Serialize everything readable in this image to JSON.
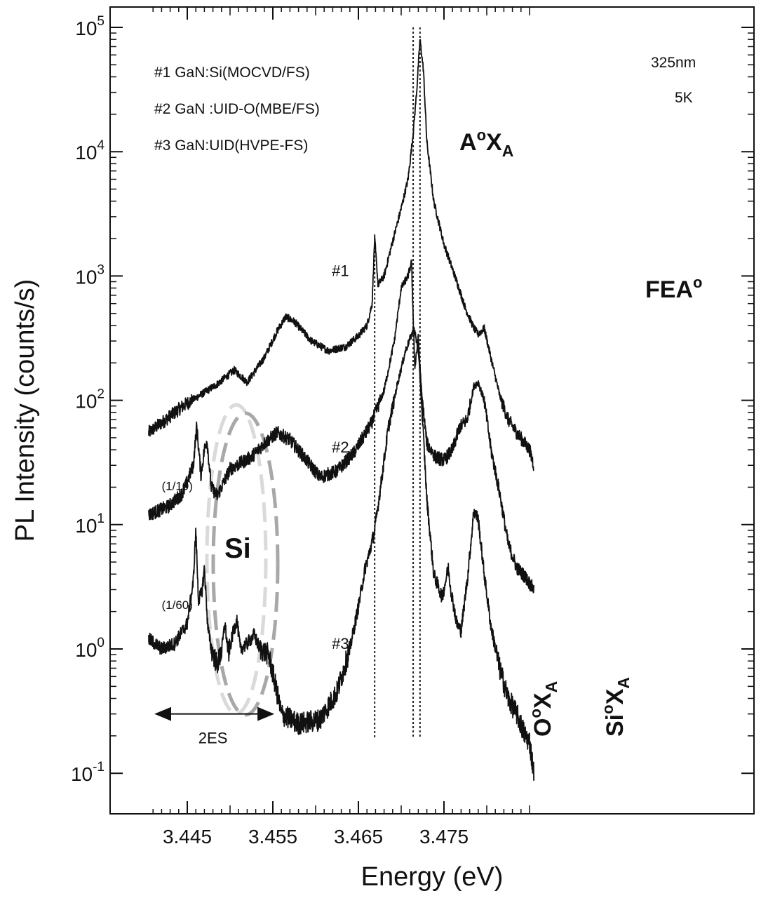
{
  "chart_data": {
    "type": "line",
    "xlabel": "Energy (eV)",
    "ylabel": "PL Intensity (counts/s)",
    "y_scale": "log",
    "xlim": [
      3.4405,
      3.4855
    ],
    "ylim": [
      0.05,
      150000
    ],
    "x_ticks": [
      {
        "value": 3.445,
        "label": "3.445"
      },
      {
        "value": 3.455,
        "label": "3.455"
      },
      {
        "value": 3.465,
        "label": "3.465"
      },
      {
        "value": 3.475,
        "label": "3.475"
      }
    ],
    "y_ticks": [
      {
        "value": 0.1,
        "base": "10",
        "exp": "-1"
      },
      {
        "value": 1,
        "base": "10",
        "exp": "0"
      },
      {
        "value": 10,
        "base": "10",
        "exp": "1"
      },
      {
        "value": 100,
        "base": "10",
        "exp": "2"
      },
      {
        "value": 1000,
        "base": "10",
        "exp": "3"
      },
      {
        "value": 10000,
        "base": "10",
        "exp": "4"
      },
      {
        "value": 100000,
        "base": "10",
        "exp": "5"
      }
    ],
    "legend": [
      "#1 GaN:Si(MOCVD/FS)",
      "#2 GaN :UID-O(MBE/FS)",
      "#3 GaN:UID(HVPE-FS)"
    ],
    "conditions": [
      "325nm",
      "5K"
    ],
    "series": [
      {
        "name": "#1",
        "points": [
          [
            3.4405,
            55
          ],
          [
            3.4425,
            70
          ],
          [
            3.4445,
            90
          ],
          [
            3.4465,
            110
          ],
          [
            3.4485,
            135
          ],
          [
            3.4505,
            175
          ],
          [
            3.452,
            140
          ],
          [
            3.454,
            220
          ],
          [
            3.4555,
            360
          ],
          [
            3.4565,
            470
          ],
          [
            3.4575,
            430
          ],
          [
            3.4595,
            300
          ],
          [
            3.4615,
            250
          ],
          [
            3.4635,
            270
          ],
          [
            3.465,
            330
          ],
          [
            3.466,
            400
          ],
          [
            3.4666,
            600
          ],
          [
            3.4669,
            2000
          ],
          [
            3.4673,
            850
          ],
          [
            3.468,
            1000
          ],
          [
            3.469,
            1900
          ],
          [
            3.47,
            3500
          ],
          [
            3.4708,
            6000
          ],
          [
            3.4714,
            14000
          ],
          [
            3.4718,
            30000
          ],
          [
            3.4722,
            80000
          ],
          [
            3.4726,
            45000
          ],
          [
            3.473,
            12000
          ],
          [
            3.4738,
            4000
          ],
          [
            3.475,
            1800
          ],
          [
            3.4765,
            900
          ],
          [
            3.4775,
            550
          ],
          [
            3.4785,
            380
          ],
          [
            3.479,
            340
          ],
          [
            3.4797,
            380
          ],
          [
            3.4803,
            250
          ],
          [
            3.4815,
            110
          ],
          [
            3.4825,
            70
          ],
          [
            3.4835,
            55
          ],
          [
            3.485,
            40
          ],
          [
            3.4855,
            30
          ]
        ]
      },
      {
        "name": "#2",
        "points": [
          [
            3.4405,
            12
          ],
          [
            3.4428,
            14
          ],
          [
            3.4445,
            18
          ],
          [
            3.4457,
            30
          ],
          [
            3.4461,
            62
          ],
          [
            3.4466,
            25
          ],
          [
            3.447,
            40
          ],
          [
            3.4473,
            48
          ],
          [
            3.4478,
            20
          ],
          [
            3.4485,
            17
          ],
          [
            3.45,
            28
          ],
          [
            3.4525,
            35
          ],
          [
            3.454,
            45
          ],
          [
            3.4555,
            55
          ],
          [
            3.457,
            48
          ],
          [
            3.4585,
            36
          ],
          [
            3.4605,
            24
          ],
          [
            3.4625,
            27
          ],
          [
            3.4645,
            38
          ],
          [
            3.4665,
            65
          ],
          [
            3.468,
            120
          ],
          [
            3.4692,
            300
          ],
          [
            3.47,
            800
          ],
          [
            3.4708,
            1000
          ],
          [
            3.4712,
            1300
          ],
          [
            3.4716,
            180
          ],
          [
            3.472,
            320
          ],
          [
            3.4724,
            110
          ],
          [
            3.473,
            45
          ],
          [
            3.474,
            35
          ],
          [
            3.475,
            33
          ],
          [
            3.476,
            40
          ],
          [
            3.4768,
            60
          ],
          [
            3.4777,
            70
          ],
          [
            3.4785,
            130
          ],
          [
            3.479,
            140
          ],
          [
            3.4797,
            100
          ],
          [
            3.4805,
            40
          ],
          [
            3.4815,
            18
          ],
          [
            3.4825,
            7
          ],
          [
            3.4835,
            4.5
          ],
          [
            3.4845,
            3.8
          ],
          [
            3.4855,
            3
          ]
        ]
      },
      {
        "name": "#3",
        "points": [
          [
            3.4405,
            1.2
          ],
          [
            3.442,
            1.0
          ],
          [
            3.4435,
            1.1
          ],
          [
            3.445,
            1.6
          ],
          [
            3.4457,
            3.5
          ],
          [
            3.446,
            9
          ],
          [
            3.4463,
            2.5
          ],
          [
            3.4467,
            2.8
          ],
          [
            3.447,
            4.5
          ],
          [
            3.4474,
            1.5
          ],
          [
            3.4478,
            1.0
          ],
          [
            3.4485,
            0.75
          ],
          [
            3.449,
            0.95
          ],
          [
            3.4494,
            1.6
          ],
          [
            3.4498,
            0.9
          ],
          [
            3.4504,
            1.4
          ],
          [
            3.4508,
            1.7
          ],
          [
            3.4512,
            1.0
          ],
          [
            3.452,
            1.1
          ],
          [
            3.4528,
            1.3
          ],
          [
            3.4535,
            1.0
          ],
          [
            3.4545,
            0.9
          ],
          [
            3.4552,
            0.55
          ],
          [
            3.456,
            0.3
          ],
          [
            3.458,
            0.25
          ],
          [
            3.4605,
            0.27
          ],
          [
            3.4625,
            0.45
          ],
          [
            3.464,
            1.0
          ],
          [
            3.465,
            2.2
          ],
          [
            3.4658,
            4.5
          ],
          [
            3.4663,
            6
          ],
          [
            3.4669,
            9
          ],
          [
            3.4675,
            18
          ],
          [
            3.4685,
            60
          ],
          [
            3.4695,
            130
          ],
          [
            3.4705,
            250
          ],
          [
            3.4715,
            380
          ],
          [
            3.472,
            250
          ],
          [
            3.4724,
            90
          ],
          [
            3.473,
            16
          ],
          [
            3.4738,
            4
          ],
          [
            3.4748,
            2.6
          ],
          [
            3.4755,
            4.5
          ],
          [
            3.4758,
            3
          ],
          [
            3.4765,
            1.6
          ],
          [
            3.477,
            1.4
          ],
          [
            3.4778,
            4
          ],
          [
            3.4785,
            13
          ],
          [
            3.479,
            11
          ],
          [
            3.4797,
            4
          ],
          [
            3.4805,
            1.5
          ],
          [
            3.4815,
            0.7
          ],
          [
            3.4825,
            0.4
          ],
          [
            3.4835,
            0.3
          ],
          [
            3.4845,
            0.2
          ],
          [
            3.485,
            0.18
          ],
          [
            3.4855,
            0.1
          ]
        ]
      }
    ],
    "series_labels": [
      {
        "text": "#1",
        "x": 3.4619,
        "y": 1000
      },
      {
        "text": "#2",
        "x": 3.4619,
        "y": 38
      },
      {
        "text": "#3",
        "x": 3.4619,
        "y": 1.0
      }
    ],
    "scale_labels": [
      {
        "text": "(1/10)",
        "x": 3.4425,
        "y": 19
      },
      {
        "text": "(1/60)",
        "x": 3.4425,
        "y": 2.1
      }
    ],
    "peak_lines": [
      {
        "x": 3.4669,
        "ymin": 0.1,
        "ymax": 2000
      },
      {
        "x": 3.4714,
        "ymin": 0.1,
        "ymax": 100000
      },
      {
        "x": 3.4722,
        "ymin": 0.1,
        "ymax": 100000
      }
    ],
    "peak_labels": {
      "a0xa": {
        "base": "A",
        "sup": "o",
        "main": "X",
        "sub": "A"
      },
      "o0xa": {
        "base": "O",
        "sup": "o",
        "main": "X",
        "sub": "A"
      },
      "si0xa": {
        "base": "Si",
        "sup": "o",
        "main": "X",
        "sub": "A"
      },
      "fea0": {
        "base": "FEA",
        "sup": "o"
      }
    },
    "annotations": {
      "si_region": "Si",
      "two_es": "2ES",
      "two_es_range": [
        3.4405,
        3.4555
      ]
    }
  }
}
